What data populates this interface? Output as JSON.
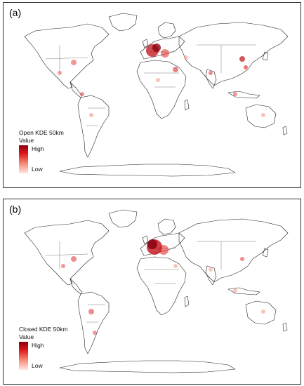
{
  "panels": [
    {
      "label": "(a)",
      "legend": {
        "title": "Open KDE 50km",
        "subtitle": "Value",
        "high": "High",
        "low": "Low"
      }
    },
    {
      "label": "(b)",
      "legend": {
        "title": "Closed KDE 50km",
        "subtitle": "Value",
        "high": "High",
        "low": "Low"
      }
    }
  ],
  "colors": {
    "high": "#8a0010",
    "mid": "#e0191c",
    "low": "#fde8e2",
    "coastline": "#222222"
  }
}
